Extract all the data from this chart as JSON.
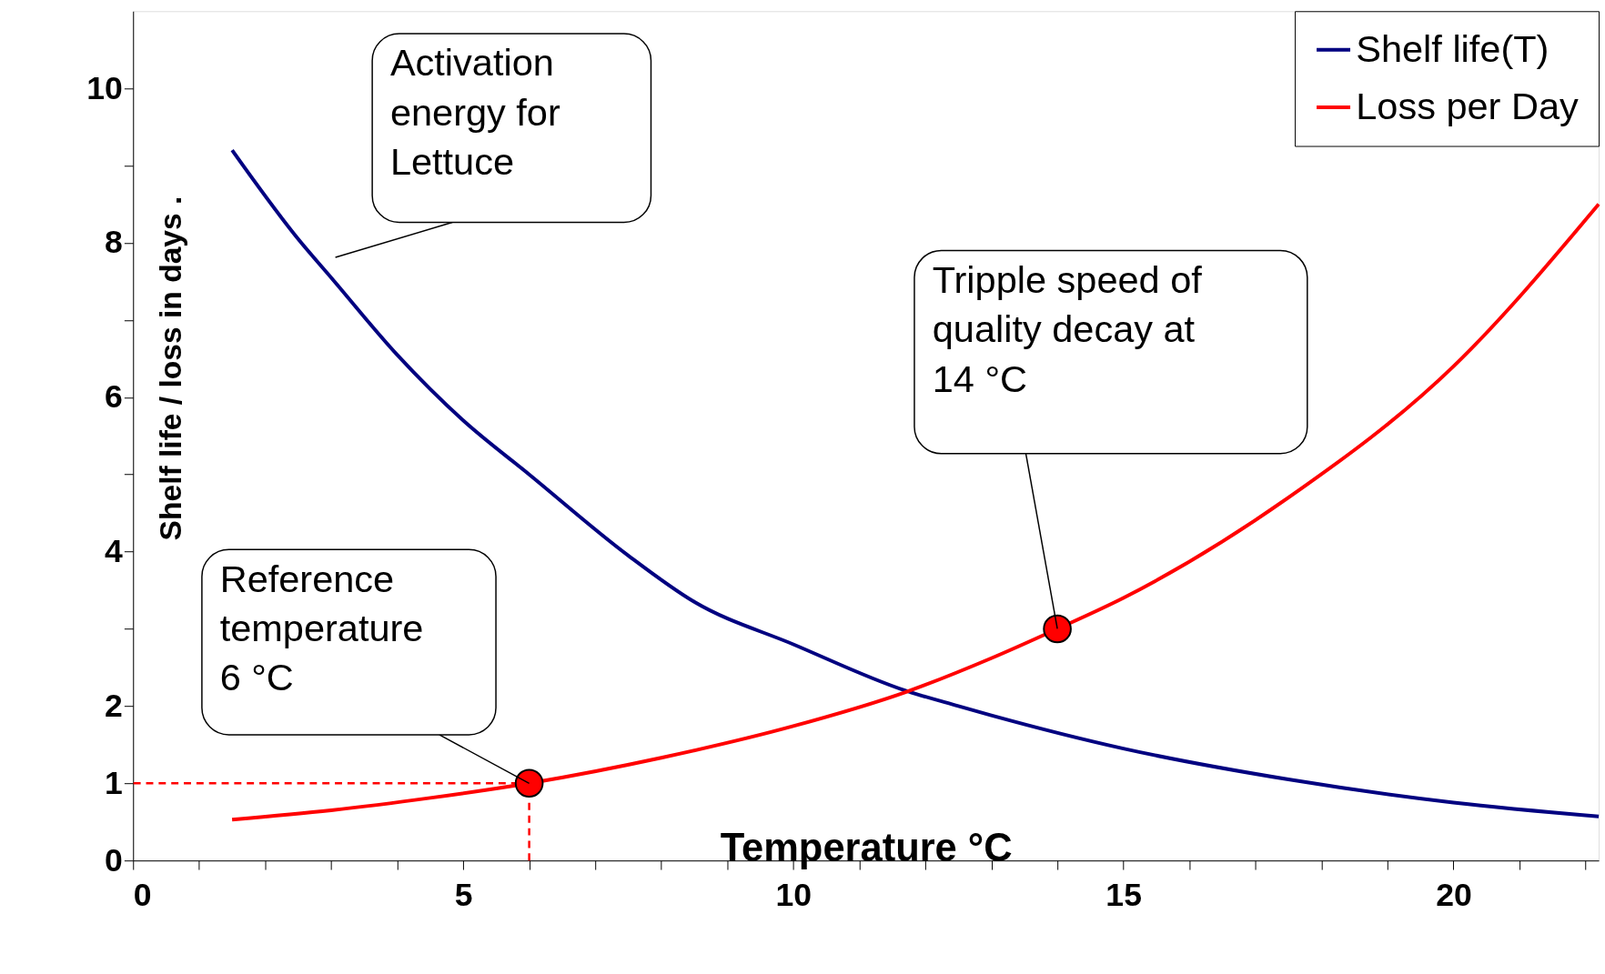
{
  "chart_data": {
    "type": "line",
    "xlabel": "Temperature °C",
    "ylabel": "Shelf life / loss in days .",
    "xlim": [
      0,
      22.2
    ],
    "ylim": [
      0,
      11
    ],
    "xticks": [
      0,
      {
        "value": 1,
        "label": null
      },
      {
        "value": 2,
        "label": null
      },
      {
        "value": 3,
        "label": null
      },
      {
        "value": 4,
        "label": null
      },
      5,
      {
        "value": 6,
        "label": null
      },
      {
        "value": 7,
        "label": null
      },
      {
        "value": 8,
        "label": null
      },
      {
        "value": 9,
        "label": null
      },
      10,
      {
        "value": 11,
        "label": null
      },
      {
        "value": 12,
        "label": null
      },
      {
        "value": 13,
        "label": null
      },
      {
        "value": 14,
        "label": null
      },
      15,
      {
        "value": 16,
        "label": null
      },
      {
        "value": 17,
        "label": null
      },
      {
        "value": 18,
        "label": null
      },
      {
        "value": 19,
        "label": null
      },
      20,
      {
        "value": 21,
        "label": null
      },
      {
        "value": 22,
        "label": null
      }
    ],
    "yticks": [
      0,
      1,
      2,
      {
        "value": 3,
        "label": null
      },
      4,
      {
        "value": 5,
        "label": null
      },
      6,
      {
        "value": 7,
        "label": null
      },
      8,
      {
        "value": 9,
        "label": null
      },
      10
    ],
    "grid": false,
    "legend": "top right",
    "series": [
      {
        "name": "Shelf life(T)",
        "color": "#000080",
        "x": [
          1.5,
          2.5,
          3,
          4,
          5,
          6,
          7.5,
          8.5,
          10,
          11.7,
          12.5,
          13,
          15,
          17.5,
          20,
          22.2
        ],
        "values": [
          9.2,
          8.05,
          7.55,
          6.55,
          5.7,
          5.0,
          3.95,
          3.35,
          2.8,
          2.2,
          2.0,
          1.88,
          1.45,
          1.05,
          0.75,
          0.57
        ]
      },
      {
        "name": "Loss per Day",
        "color": "#ff0000",
        "x": [
          1.5,
          3,
          4.5,
          6,
          8,
          10,
          11.7,
          13,
          14,
          15,
          17.5,
          20,
          22.2
        ],
        "values": [
          0.53,
          0.65,
          0.81,
          1.0,
          1.33,
          1.74,
          2.18,
          2.62,
          3.0,
          3.4,
          4.7,
          6.4,
          8.5
        ]
      },
      {
        "color": "#ff0000",
        "type": "line",
        "line_style": "dashed",
        "x": [
          6,
          6,
          0
        ],
        "values": [
          0,
          1,
          1
        ]
      },
      {
        "color": "#ff0000",
        "type": "scatter",
        "marker": "circle",
        "x": [
          6,
          14
        ],
        "values": [
          1,
          3
        ]
      }
    ],
    "annotations": [
      "Activation\nenergy for\nLettuce",
      {
        "text": "Reference\ntemperature\n6 °C",
        "x": 6,
        "y": 1
      },
      "Tripple speed of\nquality decay at\n14 °C"
    ]
  }
}
